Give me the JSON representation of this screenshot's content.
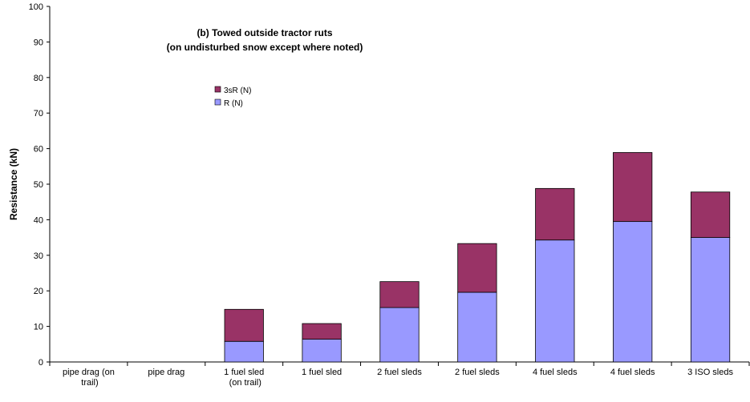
{
  "chart_data": {
    "type": "bar",
    "stacked": true,
    "title": "(b) Towed outside tractor ruts",
    "subtitle": "(on undisturbed snow except where noted)",
    "y_label": "Resistance (kN)",
    "categories": [
      "pipe drag (on trail)",
      "pipe drag",
      "1 fuel sled (on trail)",
      "1 fuel sled",
      "2 fuel sleds",
      "2 fuel sleds",
      "4 fuel sleds",
      "4 fuel sleds",
      "3 ISO sleds"
    ],
    "series": [
      {
        "name": "R (N)",
        "color": "#9999ff",
        "values": [
          0,
          0,
          5.8,
          6.4,
          15.3,
          19.6,
          34.3,
          39.5,
          35.0
        ]
      },
      {
        "name": "3sR (N)",
        "color": "#993366",
        "values": [
          0,
          0,
          9.0,
          4.4,
          7.3,
          13.7,
          14.5,
          19.4,
          12.8
        ]
      }
    ],
    "ylim": [
      0,
      100
    ],
    "yticks": [
      0,
      10,
      20,
      30,
      40,
      50,
      60,
      70,
      80,
      90,
      100
    ]
  }
}
